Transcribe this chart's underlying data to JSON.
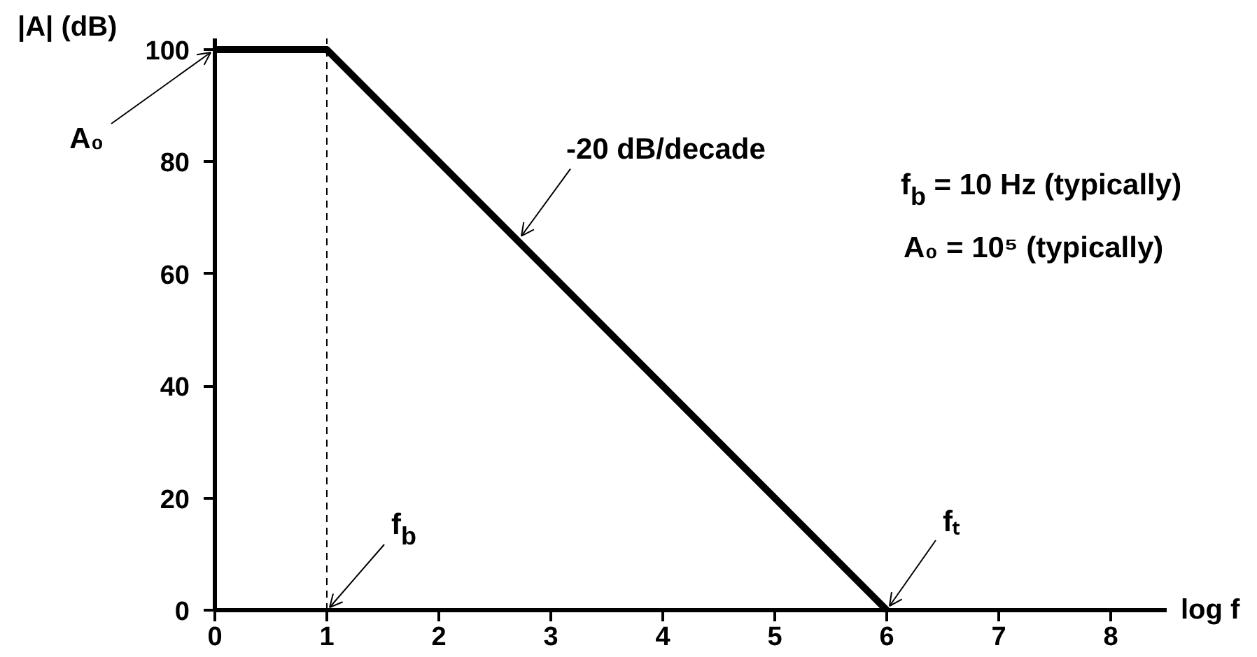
{
  "chart_data": {
    "type": "line",
    "xlabel": "log f",
    "ylabel": "|A| (dB)",
    "x": [
      0,
      1,
      6
    ],
    "series": [
      {
        "color": "#000000",
        "values": [
          100,
          100,
          0
        ]
      }
    ],
    "xlim": [
      0,
      8.5
    ],
    "ylim": [
      0,
      102
    ],
    "xticks": [
      0,
      1,
      2,
      3,
      4,
      5,
      6,
      7,
      8
    ],
    "yticks": [
      0,
      20,
      40,
      60,
      80,
      100
    ],
    "grid": false,
    "ref_lines": [
      {
        "axis": "x",
        "value": 1,
        "line_style": "dashed",
        "color": "#000000"
      }
    ],
    "annotations": [
      {
        "text": "A₀",
        "x": 0,
        "y": 100
      },
      {
        "text": "-20 dB/decade",
        "x": 2.7,
        "y": 66
      },
      {
        "text": "f$_{b}$",
        "x": 1,
        "y": 0
      },
      {
        "text": "fₜ",
        "x": 6,
        "y": 0
      },
      "f$_{b}$ = 10 Hz (typically)",
      "A₀ = 10⁵ (typically)"
    ]
  }
}
